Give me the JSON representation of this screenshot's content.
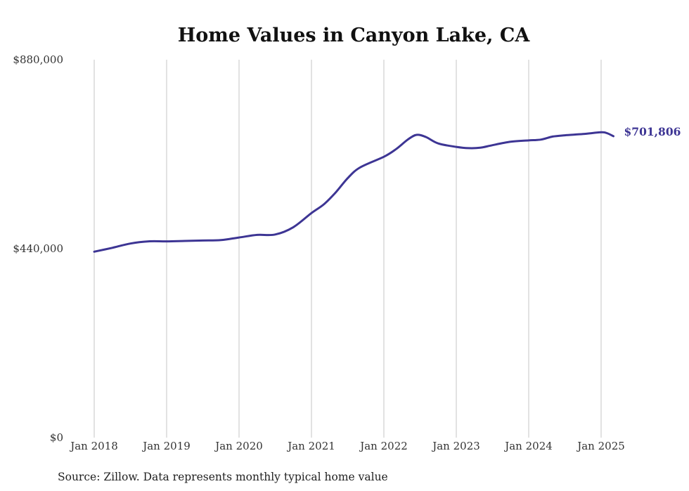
{
  "chart_data": {
    "type": "line",
    "title": "Home Values in Canyon Lake, CA",
    "source": "Source: Zillow. Data represents monthly typical home value",
    "xlabel": "",
    "ylabel": "",
    "y_ticks": [
      {
        "value": 0,
        "label": "$0"
      },
      {
        "value": 440000,
        "label": "$440,000"
      },
      {
        "value": 880000,
        "label": "$880,000"
      }
    ],
    "ylim": [
      0,
      880000
    ],
    "x_ticks": [
      {
        "value": 2018,
        "label": "Jan 2018"
      },
      {
        "value": 2019,
        "label": "Jan 2019"
      },
      {
        "value": 2020,
        "label": "Jan 2020"
      },
      {
        "value": 2021,
        "label": "Jan 2021"
      },
      {
        "value": 2022,
        "label": "Jan 2022"
      },
      {
        "value": 2023,
        "label": "Jan 2023"
      },
      {
        "value": 2024,
        "label": "Jan 2024"
      },
      {
        "value": 2025,
        "label": "Jan 2025"
      }
    ],
    "xlim": [
      2018,
      2025.17
    ],
    "grid": "vertical",
    "line_color": "#3d3594",
    "end_label": "$701,806",
    "series": [
      {
        "x": [
          2018.0,
          2018.25,
          2018.5,
          2018.75,
          2019.0,
          2019.25,
          2019.5,
          2019.75,
          2020.0,
          2020.25,
          2020.5,
          2020.75,
          2021.0,
          2021.17,
          2021.33,
          2021.5,
          2021.67,
          2022.0,
          2022.17,
          2022.33,
          2022.45,
          2022.58,
          2022.75,
          2023.0,
          2023.17,
          2023.33,
          2023.5,
          2023.75,
          2024.0,
          2024.17,
          2024.33,
          2024.5,
          2024.75,
          2025.0,
          2025.08,
          2025.17
        ],
        "y": [
          433000,
          442000,
          452000,
          457000,
          457000,
          458000,
          459000,
          460000,
          466000,
          472000,
          473000,
          490000,
          523000,
          543000,
          570000,
          604000,
          629000,
          654000,
          672000,
          694000,
          705000,
          700000,
          685000,
          677000,
          674000,
          675000,
          681000,
          689000,
          692000,
          694000,
          701000,
          704000,
          707000,
          711000,
          709000,
          701806
        ]
      }
    ]
  }
}
